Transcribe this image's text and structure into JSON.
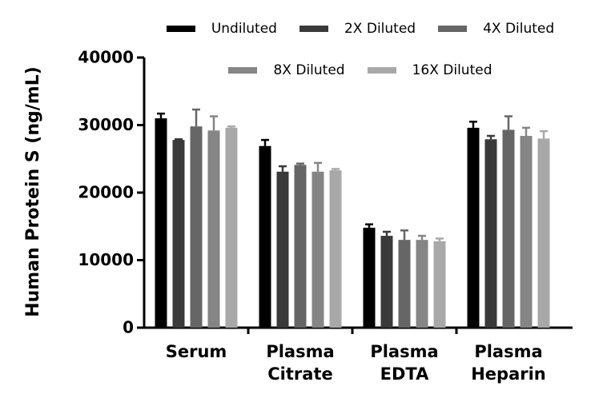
{
  "chart_data": {
    "type": "bar",
    "y_label": "Human Protein S (ng/mL)",
    "categories": [
      "Serum",
      "Plasma Citrate",
      "Plasma EDTA",
      "Plasma Heparin"
    ],
    "ylim": [
      0,
      40000
    ],
    "yticks": [
      0,
      10000,
      20000,
      30000,
      40000
    ],
    "series": [
      {
        "name": "Undiluted",
        "color": "#000000",
        "values": [
          31000,
          26900,
          14800,
          29600
        ],
        "errors": [
          700,
          900,
          500,
          900
        ]
      },
      {
        "name": "2X Diluted",
        "color": "#3a3a3a",
        "values": [
          27800,
          23100,
          13600,
          27900
        ],
        "errors": [
          100,
          800,
          600,
          500
        ]
      },
      {
        "name": "4X Diluted",
        "color": "#666666",
        "values": [
          29800,
          24100,
          13000,
          29300
        ],
        "errors": [
          2500,
          200,
          1400,
          2000
        ]
      },
      {
        "name": "8X Diluted",
        "color": "#858585",
        "values": [
          29200,
          23100,
          13000,
          28400
        ],
        "errors": [
          2100,
          1300,
          600,
          1200
        ]
      },
      {
        "name": "16X Diluted",
        "color": "#a8a8a8",
        "values": [
          29600,
          23300,
          12800,
          28000
        ],
        "errors": [
          200,
          200,
          400,
          1100
        ]
      }
    ]
  }
}
